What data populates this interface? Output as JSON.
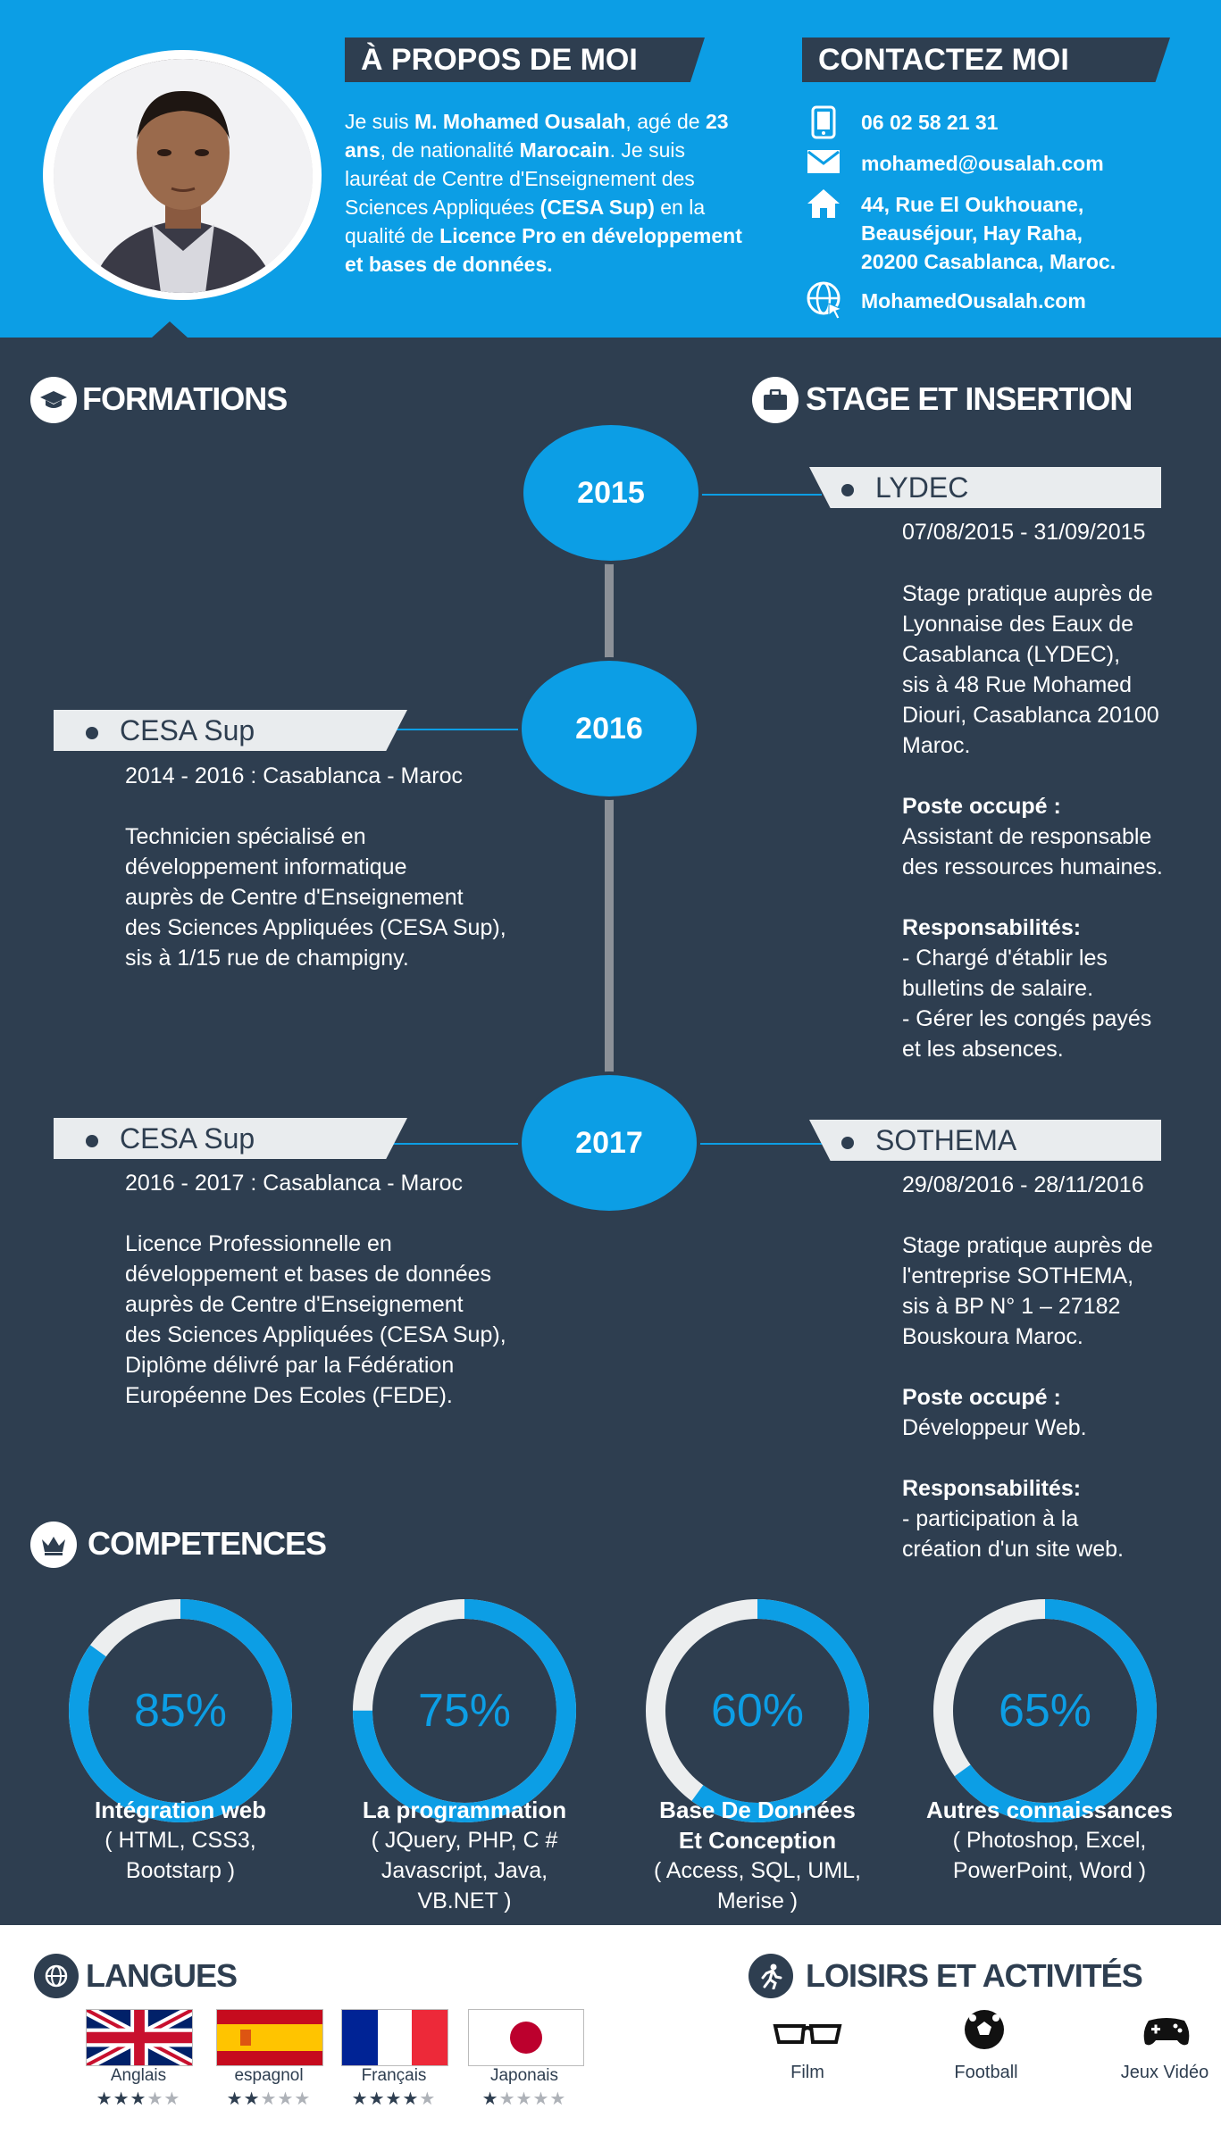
{
  "about": {
    "title": "À PROPOS DE MOI",
    "t1": "Je suis ",
    "name": "M. Mohamed Ousalah",
    "t2": ", agé de ",
    "age": "23 ans",
    "t3": ",  de nationalité ",
    "nationality": "Marocain",
    "t4": ". Je suis lauréat de Centre d'Enseignement des Sciences Appliquées ",
    "school": "(CESA Sup)",
    "t5": " en la qualité de ",
    "degree": "Licence Pro en développement et bases de données."
  },
  "contact": {
    "title": "CONTACTEZ MOI",
    "phone": "06 02 58 21 31",
    "email": "mohamed@ousalah.com",
    "address_1": "44, Rue El Oukhouane,",
    "address_2": "Beauséjour, Hay Raha,",
    "address_3": "20200 Casablanca, Maroc.",
    "website": "MohamedOusalah.com"
  },
  "formations": {
    "title": "FORMATIONS",
    "items": [
      {
        "name": "CESA Sup",
        "period": "2014 - 2016 :  Casablanca - Maroc",
        "lines": [
          "Technicien spécialisé en",
          "développement informatique",
          "auprès de Centre d'Enseignement",
          "des Sciences Appliquées (CESA Sup),",
          "sis à 1/15 rue de champigny."
        ]
      },
      {
        "name": "CESA Sup",
        "period": "2016 - 2017 :  Casablanca - Maroc",
        "lines": [
          "Licence Professionnelle en",
          "développement et bases de données",
          "auprès de Centre d'Enseignement",
          "des Sciences Appliquées (CESA Sup),",
          "Diplôme délivré par la Fédération",
          "Européenne Des Ecoles (FEDE)."
        ]
      }
    ]
  },
  "stages": {
    "title": "STAGE ET INSERTION",
    "items": [
      {
        "name": "LYDEC",
        "period": "07/08/2015 - 31/09/2015",
        "lines": [
          "Stage pratique auprès de",
          "Lyonnaise des Eaux de",
          "Casablanca (LYDEC),",
          "sis à 48 Rue Mohamed",
          "Diouri, Casablanca 20100",
          "Maroc."
        ],
        "post_label": "Poste occupé :",
        "post_lines": [
          "Assistant de responsable",
          "des ressources humaines."
        ],
        "resp_label": "Responsabilités:",
        "resp_lines": [
          "- Chargé d'établir les",
          "bulletins de salaire.",
          "- Gérer les congés payés",
          "et les absences."
        ]
      },
      {
        "name": "SOTHEMA",
        "period": "29/08/2016 - 28/11/2016",
        "lines": [
          "Stage pratique auprès de",
          "l'entreprise SOTHEMA,",
          "sis à BP N° 1 – 27182",
          "Bouskoura Maroc."
        ],
        "post_label": "Poste occupé :",
        "post_lines": [
          "Développeur Web."
        ],
        "resp_label": "Responsabilités:",
        "resp_lines": [
          "- participation à la",
          "création d'un site web."
        ]
      }
    ]
  },
  "years": [
    "2015",
    "2016",
    "2017"
  ],
  "competences": {
    "title": "COMPETENCES",
    "items": [
      {
        "percent": 85,
        "label": "85%",
        "title_lines": [
          "Intégration web"
        ],
        "sub_lines": [
          "( HTML, CSS3,",
          "Bootstarp )"
        ]
      },
      {
        "percent": 75,
        "label": "75%",
        "title_lines": [
          "La programmation"
        ],
        "sub_lines": [
          "( JQuery, PHP, C #",
          "Javascript, Java,",
          "VB.NET )"
        ]
      },
      {
        "percent": 60,
        "label": "60%",
        "title_lines": [
          "Base De Données",
          "Et  Conception"
        ],
        "sub_lines": [
          "( Access, SQL, UML,",
          "Merise )"
        ]
      },
      {
        "percent": 65,
        "label": "65%",
        "title_lines": [
          "Autres connaissances"
        ],
        "sub_lines": [
          "( Photoshop, Excel,",
          "PowerPoint, Word )"
        ]
      }
    ]
  },
  "langues": {
    "title": "LANGUES",
    "items": [
      {
        "label": "Anglais",
        "stars": 3,
        "flag": "uk-flag"
      },
      {
        "label": "espagnol",
        "stars": 2,
        "flag": "spain-flag"
      },
      {
        "label": "Français",
        "stars": 4,
        "flag": "france-flag"
      },
      {
        "label": "Japonais",
        "stars": 1,
        "flag": "japan-flag"
      }
    ]
  },
  "loisirs": {
    "title": "LOISIRS ET ACTIVITÉS",
    "items": [
      {
        "label": "Film",
        "icon": "glasses-icon"
      },
      {
        "label": "Football",
        "icon": "football-icon"
      },
      {
        "label": "Jeux Vidéo",
        "icon": "gamepad-icon"
      }
    ]
  },
  "colors": {
    "accent": "#0c9ee5",
    "dark": "#2e3e50",
    "track": "#eceeef"
  }
}
